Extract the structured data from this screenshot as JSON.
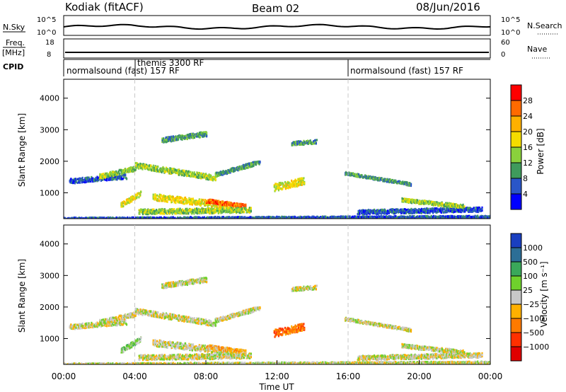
{
  "header": {
    "station": "Kodiak (fitACF)",
    "beam": "Beam 02",
    "date": "08/Jun/2016"
  },
  "nsky_panel": {
    "left_label": "N.Sky",
    "right_label": "N.Search",
    "left_ticks": [
      "10^5",
      "10^0"
    ],
    "right_ticks": [
      "10^5",
      "10^0"
    ]
  },
  "freq_panel": {
    "left_label_1": "Freq.",
    "left_label_2": "[MHz]",
    "right_label": "Nave",
    "left_ticks": [
      "18",
      "8"
    ],
    "right_ticks": [
      "60",
      "0"
    ]
  },
  "cpid_panel": {
    "label": "CPID",
    "segments": [
      {
        "start_h": 0,
        "end_h": 4,
        "text": "normalsound (fast) 157 RF"
      },
      {
        "start_h": 4,
        "end_h": 16,
        "text": "themis 3300 RF"
      },
      {
        "start_h": 16,
        "end_h": 24,
        "text": "normalsound (fast) 157 RF"
      }
    ]
  },
  "x_axis": {
    "label": "Time UT",
    "tick_labels": [
      "00:00",
      "04:00",
      "08:00",
      "12:00",
      "16:00",
      "20:00",
      "00:00"
    ],
    "tick_hours": [
      0,
      4,
      8,
      12,
      16,
      20,
      24
    ]
  },
  "chart_data": [
    {
      "type": "heatmap",
      "title": "",
      "ylabel": "Slant Range [km]",
      "xlabel": "Time UT",
      "x_range_hours": [
        0,
        24
      ],
      "ylim": [
        180,
        4600
      ],
      "y_ticks": [
        1000,
        2000,
        3000,
        4000
      ],
      "colorbar": {
        "label": "Power [dB]",
        "ticks": [
          "28",
          "24",
          "20",
          "16",
          "12",
          "8",
          "4"
        ],
        "colors": [
          "#ff0000",
          "#ff6a00",
          "#ffb000",
          "#f5dc00",
          "#8ad13c",
          "#3f9a5c",
          "#2a56c8",
          "#0000ff"
        ]
      },
      "echo_bands": [
        {
          "t0": 0.3,
          "t1": 3.5,
          "r0": 1400,
          "r1": 1550,
          "level": 1
        },
        {
          "t0": 2.0,
          "t1": 4.0,
          "r0": 1550,
          "r1": 1800,
          "level": 3
        },
        {
          "t0": 4.0,
          "t1": 8.5,
          "r0": 1900,
          "r1": 1500,
          "level": 3,
          "thick": 170
        },
        {
          "t0": 8.5,
          "t1": 11.0,
          "r0": 1600,
          "r1": 2000,
          "level": 2,
          "thick": 130
        },
        {
          "t0": 3.2,
          "t1": 4.3,
          "r0": 650,
          "r1": 1000,
          "level": 4
        },
        {
          "t0": 5.0,
          "t1": 9.5,
          "r0": 900,
          "r1": 600,
          "level": 4,
          "thick": 200
        },
        {
          "t0": 8.0,
          "t1": 10.2,
          "r0": 780,
          "r1": 600,
          "level": 6,
          "thick": 120
        },
        {
          "t0": 4.2,
          "t1": 10.5,
          "r0": 430,
          "r1": 480,
          "level": 3,
          "thick": 160
        },
        {
          "t0": 11.8,
          "t1": 13.5,
          "r0": 1200,
          "r1": 1400,
          "level": 4,
          "thick": 230
        },
        {
          "t0": 5.5,
          "t1": 8.0,
          "r0": 2700,
          "r1": 2900,
          "level": 2,
          "thick": 150
        },
        {
          "t0": 12.8,
          "t1": 14.2,
          "r0": 2600,
          "r1": 2650,
          "level": 2,
          "thick": 120
        },
        {
          "t0": 15.8,
          "t1": 19.5,
          "r0": 1650,
          "r1": 1300,
          "level": 2,
          "thick": 90
        },
        {
          "t0": 16.5,
          "t1": 23.5,
          "r0": 420,
          "r1": 500,
          "level": 1,
          "thick": 140
        },
        {
          "t0": 19.0,
          "t1": 22.5,
          "r0": 800,
          "r1": 600,
          "level": 3,
          "thick": 120
        },
        {
          "t0": 0.0,
          "t1": 24.0,
          "r0": 200,
          "r1": 260,
          "level": 1,
          "thick": 90
        }
      ]
    },
    {
      "type": "heatmap",
      "title": "",
      "ylabel": "Slant Range [km]",
      "xlabel": "Time UT",
      "x_range_hours": [
        0,
        24
      ],
      "ylim": [
        180,
        4600
      ],
      "y_ticks": [
        1000,
        2000,
        3000,
        4000
      ],
      "colorbar": {
        "label": "Velocity [m s⁻¹]",
        "ticks": [
          "1000",
          "500",
          "100",
          "25",
          "−25",
          "−100",
          "−500",
          "−1000"
        ],
        "colors": [
          "#1a3fc0",
          "#2c6e96",
          "#3aa85a",
          "#6fd12c",
          "#c8c8c8",
          "#ffb000",
          "#ff7a00",
          "#ff3000",
          "#e00000"
        ]
      },
      "echo_bands": [
        {
          "t0": 0.3,
          "t1": 3.5,
          "r0": 1400,
          "r1": 1550,
          "level": 4
        },
        {
          "t0": 2.0,
          "t1": 4.0,
          "r0": 1550,
          "r1": 1800,
          "level": 4
        },
        {
          "t0": 4.0,
          "t1": 8.5,
          "r0": 1900,
          "r1": 1500,
          "level": 4,
          "thick": 170
        },
        {
          "t0": 8.5,
          "t1": 11.0,
          "r0": 1600,
          "r1": 2000,
          "level": 4,
          "thick": 130
        },
        {
          "t0": 3.2,
          "t1": 4.3,
          "r0": 650,
          "r1": 1000,
          "level": 5
        },
        {
          "t0": 5.0,
          "t1": 9.5,
          "r0": 900,
          "r1": 600,
          "level": 4,
          "thick": 200
        },
        {
          "t0": 8.0,
          "t1": 10.2,
          "r0": 780,
          "r1": 600,
          "level": 3,
          "thick": 120
        },
        {
          "t0": 4.2,
          "t1": 10.5,
          "r0": 430,
          "r1": 480,
          "level": 4,
          "thick": 160
        },
        {
          "t0": 11.8,
          "t1": 13.5,
          "r0": 1200,
          "r1": 1400,
          "level": 2,
          "thick": 230
        },
        {
          "t0": 5.5,
          "t1": 8.0,
          "r0": 2700,
          "r1": 2900,
          "level": 4,
          "thick": 150
        },
        {
          "t0": 12.8,
          "t1": 14.2,
          "r0": 2600,
          "r1": 2650,
          "level": 4,
          "thick": 120
        },
        {
          "t0": 15.8,
          "t1": 19.5,
          "r0": 1650,
          "r1": 1300,
          "level": 4,
          "thick": 90
        },
        {
          "t0": 16.5,
          "t1": 23.5,
          "r0": 420,
          "r1": 500,
          "level": 4,
          "thick": 140
        },
        {
          "t0": 19.0,
          "t1": 22.5,
          "r0": 800,
          "r1": 600,
          "level": 4,
          "thick": 120
        },
        {
          "t0": 0.0,
          "t1": 24.0,
          "r0": 200,
          "r1": 260,
          "level": 4,
          "thick": 90
        }
      ]
    }
  ]
}
